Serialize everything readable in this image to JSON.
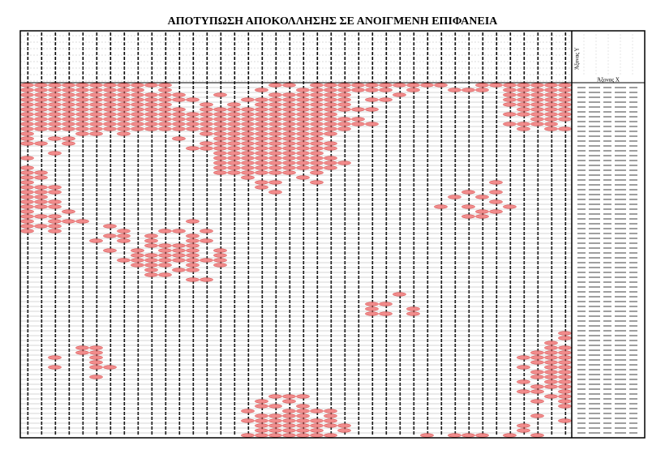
{
  "title": "ΑΠΟΤΥΠΩΣΗ ΑΠΟΚΟΛΛΗΣΗΣ ΣΕ ΑΝΟΙΓΜΕΝΗ ΕΠΙΦΑΝΕΙΑ",
  "panel": {
    "y_axis_label": "Άξονας Υ",
    "x_axis_label": "Άξονας Χ"
  }
}
